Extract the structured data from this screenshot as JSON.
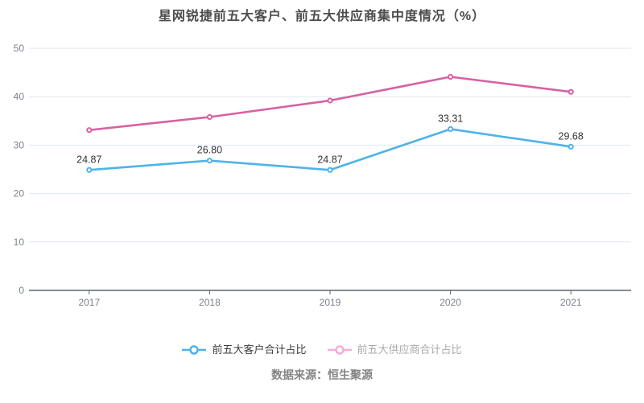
{
  "chart_data": {
    "type": "line",
    "title": "星网锐捷前五大客户、前五大供应商集中度情况（%）",
    "categories": [
      "2017",
      "2018",
      "2019",
      "2020",
      "2021"
    ],
    "series": [
      {
        "name": "前五大客户合计占比",
        "color": "#4db3e8",
        "values": [
          24.87,
          26.8,
          24.87,
          33.31,
          29.68
        ],
        "labels": [
          "24.87",
          "26.80",
          "24.87",
          "33.31",
          "29.68"
        ],
        "show_labels": true
      },
      {
        "name": "前五大供应商合计占比",
        "color": "#d761a3",
        "values": [
          33.1,
          35.8,
          39.2,
          44.1,
          41.0
        ],
        "labels": null,
        "show_labels": false
      }
    ],
    "xlabel": "",
    "ylabel": "",
    "ylim": [
      0,
      50
    ],
    "ytick_interval": 10,
    "grid": true,
    "legend_position": "bottom"
  },
  "legend": {
    "items": [
      {
        "label": "前五大客户合计占比",
        "marker_color": "#4db3e8",
        "text_color": "#3d3d3d"
      },
      {
        "label": "前五大供应商合计占比",
        "marker_color": "#f2afd3",
        "text_color": "#ababab"
      }
    ]
  },
  "source": {
    "text": "数据来源：恒生聚源"
  },
  "colors": {
    "background": "#ffffff",
    "title_text": "#4c4c4c",
    "grid_line": "#dfe7f1",
    "axis_line": "#5c6670",
    "axis_label": "#7b828c",
    "data_label": "#333333",
    "source_text": "#848484"
  }
}
